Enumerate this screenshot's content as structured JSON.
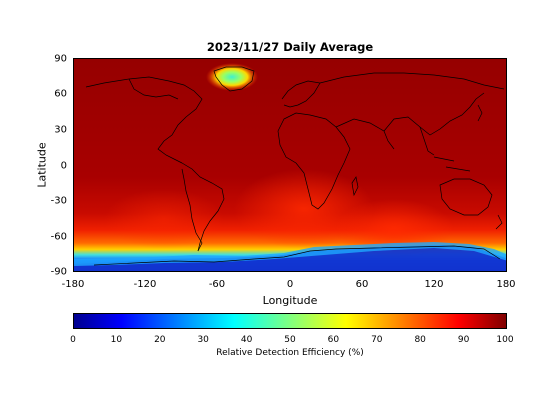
{
  "figure": {
    "title": "2023/11/27 Daily Average",
    "xlabel": "Longitude",
    "ylabel": "Latitude",
    "xticks": [
      "-180",
      "-120",
      "-60",
      "0",
      "60",
      "120",
      "180"
    ],
    "yticks": [
      "90",
      "60",
      "30",
      "0",
      "-30",
      "-60",
      "-90"
    ],
    "colorbar": {
      "label": "Relative Detection Efficiency (%)",
      "ticks": [
        "0",
        "10",
        "20",
        "30",
        "40",
        "50",
        "60",
        "70",
        "80",
        "90",
        "100"
      ],
      "colormap": "jet",
      "range": [
        0,
        100
      ]
    }
  },
  "chart_data": {
    "type": "heatmap",
    "title": "2023/11/27 Daily Average",
    "xlabel": "Longitude",
    "ylabel": "Latitude",
    "xlim": [
      -180,
      180
    ],
    "ylim": [
      -90,
      90
    ],
    "colorbar_label": "Relative Detection Efficiency (%)",
    "colorbar_range": [
      0,
      100
    ],
    "colors": {
      "background_dominant": "#9a0000",
      "southern_ocean_band": "#ff4a00",
      "antarctic": "#1c3fd8",
      "greenland_low": "#5ee8c8",
      "coastline": "#000000"
    },
    "regions": [
      {
        "name": "global",
        "lat_range": [
          -55,
          90
        ],
        "value": 95
      },
      {
        "name": "southern-ocean",
        "lat_range": [
          -72,
          -55
        ],
        "value": 80
      },
      {
        "name": "antarctic-coast",
        "lat_range": [
          -80,
          -72
        ],
        "value": 45
      },
      {
        "name": "antarctica",
        "lat_range": [
          -90,
          -78
        ],
        "value": 8
      },
      {
        "name": "greenland",
        "lat_range": [
          66,
          82
        ],
        "lon_range": [
          -55,
          -20
        ],
        "value": 50
      }
    ]
  }
}
